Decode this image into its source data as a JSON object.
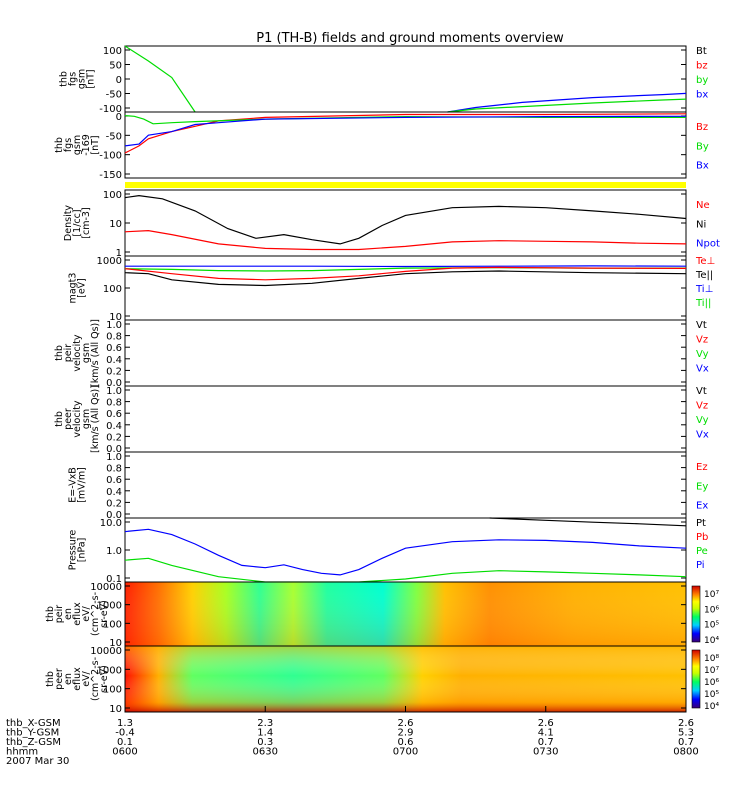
{
  "title": "P1 (TH-B) fields and ground moments overview",
  "colors": {
    "black": "#000000",
    "red": "#ff0000",
    "green": "#00dd00",
    "blue": "#0000ff",
    "yellow": "#ffff00"
  },
  "chart_data": [
    {
      "id": "fgs",
      "type": "line",
      "ylabel_lines": [
        "thb",
        "fgs",
        "gsm",
        "[nT]"
      ],
      "yticks": [
        "100",
        "50",
        "0",
        "-50",
        "-100"
      ],
      "ylim": [
        -110,
        110
      ],
      "legend": [
        {
          "label": "Bt",
          "color": "#000000"
        },
        {
          "label": "bz",
          "color": "#ff0000"
        },
        {
          "label": "by",
          "color": "#00dd00"
        },
        {
          "label": "bx",
          "color": "#0000ff"
        }
      ],
      "series": [
        {
          "name": "by-early",
          "color": "#00dd00",
          "x": [
            0,
            5,
            10,
            15
          ],
          "y": [
            110,
            60,
            5,
            -110
          ]
        },
        {
          "name": "bx",
          "color": "#0000ff",
          "x": [
            69,
            75,
            85,
            100,
            115,
            120
          ],
          "y": [
            -110,
            -95,
            -78,
            -62,
            -52,
            -48
          ]
        },
        {
          "name": "by",
          "color": "#00dd00",
          "x": [
            69,
            75,
            85,
            100,
            115,
            120
          ],
          "y": [
            -110,
            -100,
            -92,
            -80,
            -70,
            -67
          ]
        }
      ]
    },
    {
      "id": "fgs169",
      "type": "line",
      "ylabel_lines": [
        "thb",
        "fgs",
        "gsm",
        "-169",
        "[nT]"
      ],
      "yticks": [
        "0",
        "-50",
        "-100",
        "-150"
      ],
      "ylim": [
        -170,
        15
      ],
      "legend": [
        {
          "label": "Bz",
          "color": "#ff0000"
        },
        {
          "label": "By",
          "color": "#00dd00"
        },
        {
          "label": "Bx",
          "color": "#0000ff"
        }
      ],
      "series": [
        {
          "name": "Bz",
          "color": "#ff0000",
          "x": [
            0,
            3,
            5,
            10,
            15,
            20,
            30,
            60,
            90,
            120
          ],
          "y": [
            -100,
            -80,
            -60,
            -40,
            -25,
            -10,
            0,
            8,
            8,
            10
          ]
        },
        {
          "name": "By",
          "color": "#00dd00",
          "x": [
            0,
            2,
            4,
            6,
            10,
            15,
            30,
            60,
            90,
            120
          ],
          "y": [
            5,
            3,
            -5,
            -18,
            -15,
            -12,
            -5,
            2,
            0,
            0
          ]
        },
        {
          "name": "Bx",
          "color": "#0000ff",
          "x": [
            0,
            3,
            5,
            10,
            15,
            20,
            30,
            60,
            90,
            120
          ],
          "y": [
            -80,
            -75,
            -50,
            -40,
            -20,
            -15,
            -5,
            0,
            2,
            3
          ]
        }
      ]
    },
    {
      "id": "flag",
      "type": "bar-strip",
      "color": "#ffff00"
    },
    {
      "id": "density",
      "type": "line",
      "scale": "log",
      "ylabel_lines": [
        "Density",
        "[1/cc]",
        "[cm-3]"
      ],
      "yticks": [
        "100",
        "10",
        "1"
      ],
      "ylim": [
        0.5,
        200
      ],
      "legend": [
        {
          "label": "Ne",
          "color": "#ff0000"
        },
        {
          "label": "Ni",
          "color": "#000000"
        },
        {
          "label": "Npot",
          "color": "#0000ff"
        }
      ],
      "series": [
        {
          "name": "Ni",
          "color": "#000000",
          "x": [
            0,
            3,
            8,
            15,
            22,
            28,
            34,
            40,
            46,
            50,
            55,
            60,
            70,
            80,
            90,
            100,
            110,
            120
          ],
          "y": [
            100,
            120,
            90,
            30,
            6,
            2.5,
            3.5,
            2.2,
            1.5,
            2.5,
            8,
            20,
            40,
            45,
            40,
            30,
            22,
            15
          ]
        },
        {
          "name": "Ne",
          "color": "#ff0000",
          "x": [
            0,
            5,
            10,
            20,
            30,
            40,
            50,
            60,
            70,
            80,
            90,
            100,
            110,
            120
          ],
          "y": [
            4.5,
            5,
            3.5,
            1.5,
            1,
            0.9,
            0.9,
            1.2,
            1.8,
            2,
            1.9,
            1.8,
            1.6,
            1.5
          ]
        }
      ]
    },
    {
      "id": "temp",
      "type": "line",
      "scale": "log",
      "ylabel_lines": [
        "magt3",
        "[eV]"
      ],
      "yticks": [
        "1000",
        "100",
        "10"
      ],
      "ylim": [
        10,
        1000
      ],
      "legend": [
        {
          "label": "Te⊥",
          "color": "#ff0000"
        },
        {
          "label": "Te||",
          "color": "#000000"
        },
        {
          "label": "Ti⊥",
          "color": "#0000ff"
        },
        {
          "label": "Ti||",
          "color": "#00dd00"
        }
      ],
      "series": [
        {
          "name": "Ti_perp",
          "color": "#0000ff",
          "x": [
            0,
            20,
            40,
            60,
            80,
            100,
            120
          ],
          "y": [
            480,
            480,
            480,
            470,
            480,
            490,
            480
          ]
        },
        {
          "name": "Ti_par",
          "color": "#00dd00",
          "x": [
            0,
            10,
            20,
            30,
            40,
            50,
            60,
            80,
            100,
            120
          ],
          "y": [
            400,
            380,
            350,
            340,
            350,
            380,
            420,
            430,
            420,
            420
          ]
        },
        {
          "name": "Te_perp",
          "color": "#ff0000",
          "x": [
            0,
            10,
            20,
            30,
            40,
            50,
            60,
            70,
            80,
            100,
            120
          ],
          "y": [
            400,
            280,
            200,
            180,
            200,
            240,
            330,
            420,
            440,
            420,
            410
          ]
        },
        {
          "name": "Te_par",
          "color": "#000000",
          "x": [
            0,
            5,
            10,
            20,
            30,
            40,
            50,
            60,
            70,
            80,
            100,
            120
          ],
          "y": [
            300,
            280,
            180,
            130,
            120,
            140,
            200,
            280,
            320,
            340,
            300,
            280
          ]
        }
      ]
    },
    {
      "id": "peirv",
      "type": "empty",
      "ylabel_lines": [
        "thb",
        "peir",
        "velocity",
        "gsm",
        "[km/s (All Qs)]"
      ],
      "yticks": [
        "1.0",
        "0.8",
        "0.6",
        "0.4",
        "0.2",
        "0.0"
      ],
      "legend": [
        {
          "label": "Vt",
          "color": "#000000"
        },
        {
          "label": "Vz",
          "color": "#ff0000"
        },
        {
          "label": "Vy",
          "color": "#00dd00"
        },
        {
          "label": "Vx",
          "color": "#0000ff"
        }
      ]
    },
    {
      "id": "peerv",
      "type": "empty",
      "ylabel_lines": [
        "thb",
        "peer",
        "velocity",
        "gsm",
        "[km/s (All Qs)]"
      ],
      "yticks": [
        "1.0",
        "0.8",
        "0.6",
        "0.4",
        "0.2",
        "0.0"
      ],
      "legend": [
        {
          "label": "Vt",
          "color": "#000000"
        },
        {
          "label": "Vz",
          "color": "#ff0000"
        },
        {
          "label": "Vy",
          "color": "#00dd00"
        },
        {
          "label": "Vx",
          "color": "#0000ff"
        }
      ]
    },
    {
      "id": "efield",
      "type": "empty",
      "ylabel_lines": [
        "E=-VxB",
        "[mV/m]"
      ],
      "yticks": [
        "1.0",
        "0.8",
        "0.6",
        "0.4",
        "0.2",
        "0.0"
      ],
      "legend": [
        {
          "label": "Ez",
          "color": "#ff0000"
        },
        {
          "label": "Ey",
          "color": "#00dd00"
        },
        {
          "label": "Ex",
          "color": "#0000ff"
        }
      ]
    },
    {
      "id": "pressure",
      "type": "line",
      "scale": "log",
      "ylabel_lines": [
        "Pressure",
        "[nPa]"
      ],
      "yticks": [
        "10.0",
        "1.0",
        "0.1"
      ],
      "ylim": [
        0.03,
        15
      ],
      "legend": [
        {
          "label": "Pt",
          "color": "#000000"
        },
        {
          "label": "Pb",
          "color": "#ff0000"
        },
        {
          "label": "Pe",
          "color": "#00dd00"
        },
        {
          "label": "Pi",
          "color": "#0000ff"
        }
      ],
      "series": [
        {
          "name": "Pi",
          "color": "#0000ff",
          "x": [
            0,
            5,
            10,
            15,
            20,
            25,
            30,
            34,
            38,
            42,
            46,
            50,
            55,
            60,
            70,
            80,
            90,
            100,
            110,
            120
          ],
          "y": [
            4,
            5,
            3,
            1.2,
            0.4,
            0.15,
            0.12,
            0.16,
            0.1,
            0.07,
            0.06,
            0.1,
            0.3,
            0.8,
            1.5,
            1.8,
            1.7,
            1.4,
            1,
            0.8
          ]
        },
        {
          "name": "Pe",
          "color": "#00dd00",
          "x": [
            0,
            5,
            10,
            20,
            30,
            40,
            50,
            60,
            70,
            80,
            90,
            100,
            110,
            120
          ],
          "y": [
            0.25,
            0.3,
            0.15,
            0.05,
            0.03,
            0.03,
            0.03,
            0.04,
            0.07,
            0.09,
            0.08,
            0.07,
            0.06,
            0.05
          ]
        },
        {
          "name": "Pt",
          "color": "#000000",
          "x": [
            78,
            90,
            100,
            110,
            120
          ],
          "y": [
            15,
            12,
            10,
            8.5,
            7
          ]
        }
      ]
    },
    {
      "id": "peir_eflux",
      "type": "heatmap",
      "ylabel_lines": [
        "thb",
        "peir",
        "en",
        "eflux",
        "eV/",
        "(cm^2-s-",
        "sr-eV)"
      ],
      "yticks": [
        "10000",
        "1000",
        "100",
        "10"
      ],
      "colorbar_ticks": [
        "10⁷",
        "10⁶",
        "10⁵",
        "10⁴"
      ]
    },
    {
      "id": "peer_eflux",
      "type": "heatmap",
      "ylabel_lines": [
        "thb",
        "peer",
        "en",
        "eflux",
        "eV/",
        "(cm^2-s-",
        "sr-eV)"
      ],
      "yticks": [
        "10000",
        "1000",
        "100",
        "10"
      ],
      "colorbar_ticks": [
        "10⁸",
        "10⁷",
        "10⁶",
        "10⁵",
        "10⁴"
      ]
    }
  ],
  "xaxis": {
    "row_labels": [
      "thb_X-GSM",
      "thb_Y-GSM",
      "thb_Z-GSM",
      "hhmm",
      "2007 Mar 30"
    ],
    "columns": [
      {
        "x": "1.3",
        "y": "-0.4",
        "z": "0.1",
        "t": "0600"
      },
      {
        "x": "2.3",
        "y": "1.4",
        "z": "0.3",
        "t": "0630"
      },
      {
        "x": "2.6",
        "y": "2.9",
        "z": "0.6",
        "t": "0700"
      },
      {
        "x": "2.6",
        "y": "4.1",
        "z": "0.7",
        "t": "0730"
      },
      {
        "x": "2.6",
        "y": "5.3",
        "z": "0.7",
        "t": "0800"
      }
    ]
  }
}
